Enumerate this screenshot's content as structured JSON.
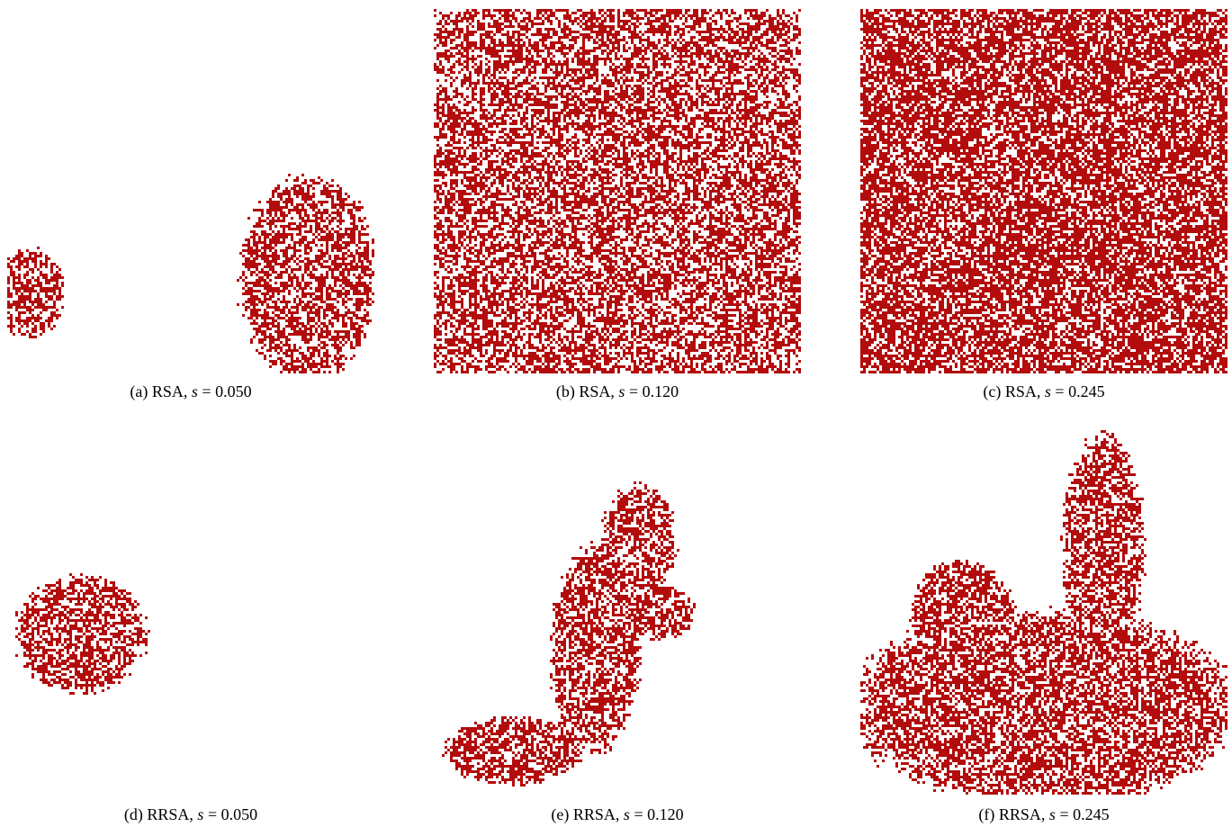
{
  "panels": [
    {
      "label": "(a)",
      "method": "RSA,",
      "symbol": "s",
      "relation": "=",
      "value": "0.050"
    },
    {
      "label": "(b)",
      "method": "RSA,",
      "symbol": "s",
      "relation": "=",
      "value": "0.120"
    },
    {
      "label": "(c)",
      "method": "RSA,",
      "symbol": "s",
      "relation": "=",
      "value": "0.245"
    },
    {
      "label": "(d)",
      "method": "RRSA,",
      "symbol": "s",
      "relation": "=",
      "value": "0.050"
    },
    {
      "label": "(e)",
      "method": "RRSA,",
      "symbol": "s",
      "relation": "=",
      "value": "0.120"
    },
    {
      "label": "(f)",
      "method": "RRSA,",
      "symbol": "s",
      "relation": "=",
      "value": "0.245"
    }
  ]
}
